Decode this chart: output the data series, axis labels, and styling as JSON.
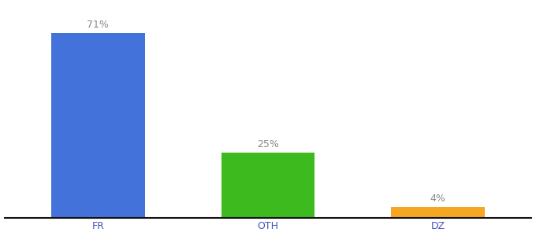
{
  "categories": [
    "FR",
    "OTH",
    "DZ"
  ],
  "values": [
    71,
    25,
    4
  ],
  "bar_colors": [
    "#4472db",
    "#3dbb1e",
    "#f5a623"
  ],
  "label_color": "#888888",
  "tick_color": "#4455bb",
  "ylim": [
    0,
    82
  ],
  "label_fontsize": 9,
  "tick_fontsize": 9,
  "bar_width": 0.55,
  "background_color": "#ffffff",
  "spine_color": "#111111",
  "x_positions": [
    0,
    1,
    2
  ],
  "xlim": [
    -0.55,
    2.55
  ]
}
